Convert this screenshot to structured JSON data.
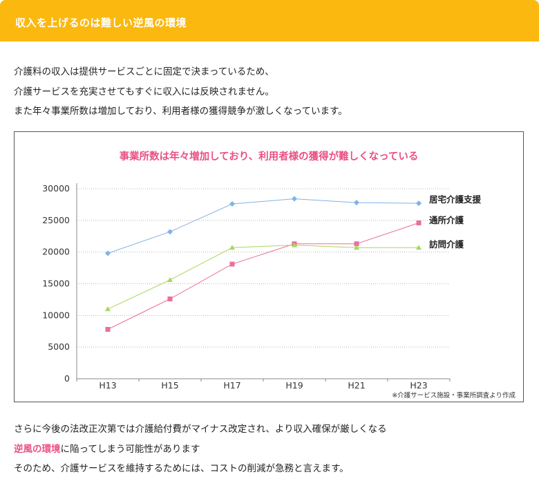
{
  "header": {
    "title": "収入を上げるのは難しい逆風の環境"
  },
  "intro": {
    "lines": [
      "介護料の収入は提供サービスごとに固定で決まっているため、",
      "介護サービスを充実させてもすぐに収入には反映されません。",
      "また年々事業所数は増加しており、利用者様の獲得競争が激しくなっています。"
    ]
  },
  "chart_data": {
    "type": "line",
    "title": "事業所数は年々増加しており、利用者様の獲得が難しくなっている",
    "categories": [
      "H13",
      "H15",
      "H17",
      "H19",
      "H21",
      "H23"
    ],
    "ylim": [
      0,
      30000
    ],
    "yticks": [
      0,
      5000,
      10000,
      15000,
      20000,
      25000,
      30000
    ],
    "grid": "horizontal-dotted",
    "legend": "right, labels at line ends",
    "series": [
      {
        "name": "居宅介護支援",
        "color": "#7fb3e6",
        "marker": "diamond",
        "values": [
          19800,
          23200,
          27600,
          28400,
          27800,
          27700
        ]
      },
      {
        "name": "通所介護",
        "color": "#ea6f9b",
        "marker": "square",
        "values": [
          7800,
          12600,
          18100,
          21300,
          21300,
          24600
        ]
      },
      {
        "name": "訪問介護",
        "color": "#a6d85c",
        "marker": "triangle",
        "values": [
          11000,
          15600,
          20700,
          21100,
          20700,
          20700
        ]
      }
    ],
    "note": "※介護サービス施設・事業所調査より作成"
  },
  "outro": {
    "line1": "さらに今後の法改正次第では介護給付費がマイナス改定され、より収入確保が厳しくなる",
    "line2_highlight": "逆風の環境",
    "line2_rest": "に陥ってしまう可能性があります",
    "line3": "そのため、介護サービスを維持するためには、コストの削減が急務と言えます。"
  }
}
